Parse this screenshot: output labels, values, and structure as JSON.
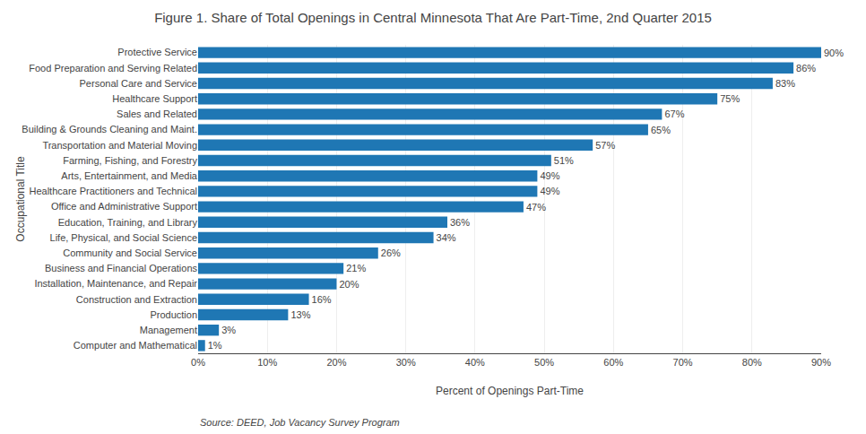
{
  "chart_data": {
    "type": "bar",
    "orientation": "horizontal",
    "title": "Figure 1. Share of Total Openings in Central Minnesota That Are Part-Time, 2nd Quarter 2015",
    "categories": [
      "Computer and Mathematical",
      "Management",
      "Production",
      "Construction and Extraction",
      "Installation, Maintenance, and Repair",
      "Business and Financial Operations",
      "Community and Social Service",
      "Life, Physical, and Social Science",
      "Education, Training, and Library",
      "Office and Administrative Support",
      "Healthcare Practitioners and Technical",
      "Arts, Entertainment, and Media",
      "Farming, Fishing, and Forestry",
      "Transportation and Material Moving",
      "Building & Grounds Cleaning and Maint.",
      "Sales and Related",
      "Healthcare Support",
      "Personal Care and Service",
      "Food Preparation and Serving Related",
      "Protective Service"
    ],
    "values": [
      1,
      3,
      13,
      16,
      20,
      21,
      26,
      34,
      36,
      47,
      49,
      49,
      51,
      57,
      65,
      67,
      75,
      83,
      86,
      90
    ],
    "value_labels": [
      "1%",
      "3%",
      "13%",
      "16%",
      "20%",
      "21%",
      "26%",
      "34%",
      "36%",
      "47%",
      "49%",
      "49%",
      "51%",
      "57%",
      "65%",
      "67%",
      "75%",
      "83%",
      "86%",
      "90%"
    ],
    "data_labels": true,
    "xlabel": "Percent of Openings Part-Time",
    "ylabel": "Occupational Title",
    "xlim": [
      0,
      90
    ],
    "xticks": [
      {
        "value": 0,
        "label": "0%"
      },
      {
        "value": 10,
        "label": "10%"
      },
      {
        "value": 20,
        "label": "20%"
      },
      {
        "value": 30,
        "label": "30%"
      },
      {
        "value": 40,
        "label": "40%"
      },
      {
        "value": 50,
        "label": "50%"
      },
      {
        "value": 60,
        "label": "60%"
      },
      {
        "value": 70,
        "label": "70%"
      },
      {
        "value": 80,
        "label": "80%"
      },
      {
        "value": 90,
        "label": "90%"
      }
    ],
    "grid": true,
    "annotations": [
      "Source: DEED, Job Vacancy Survey Program"
    ]
  }
}
